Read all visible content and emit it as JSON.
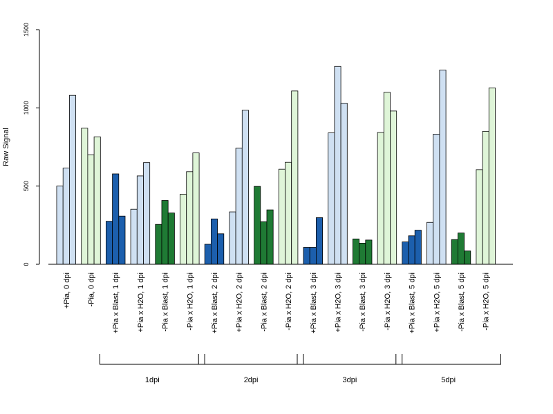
{
  "chart_data": {
    "type": "bar",
    "ylabel": "Raw Signal",
    "xlabel": "",
    "ylim": [
      0,
      1500
    ],
    "yticks": [
      0,
      500,
      1000,
      1500
    ],
    "grid": false,
    "categories": [
      "+Pia, 0 dpi",
      "-Pia, 0 dpi",
      "+Pia x Blast, 1 dpi",
      "+Pia x H2O, 1 dpi",
      "-Pia x Blast, 1 dpi",
      "-Pia x H2O, 1 dpi",
      "+Pia x Blast, 2 dpi",
      "+Pia x H2O, 2 dpi",
      "-Pia x Blast, 2 dpi",
      "-Pia x H2O, 2 dpi",
      "+Pia x Blast, 3 dpi",
      "+Pia x H2O, 3 dpi",
      "-Pia x Blast, 3 dpi",
      "-Pia x H2O, 3 dpi",
      "+Pia x Blast, 5 dpi",
      "+Pia x H2O, 5 dpi",
      "-Pia x Blast, 5 dpi",
      "-Pia x H2O, 5 dpi"
    ],
    "values": [
      [
        500,
        615,
        1080
      ],
      [
        870,
        700,
        815
      ],
      [
        275,
        578,
        308
      ],
      [
        352,
        565,
        650
      ],
      [
        255,
        408,
        328
      ],
      [
        448,
        592,
        712
      ],
      [
        128,
        290,
        195
      ],
      [
        335,
        742,
        985
      ],
      [
        498,
        272,
        348
      ],
      [
        608,
        652,
        1108
      ],
      [
        108,
        108,
        298
      ],
      [
        840,
        1265,
        1030
      ],
      [
        162,
        135,
        155
      ],
      [
        843,
        1100,
        980
      ],
      [
        143,
        182,
        218
      ],
      [
        268,
        832,
        1242
      ],
      [
        158,
        200,
        85
      ],
      [
        605,
        850,
        1128
      ]
    ],
    "colors": [
      "#cfe0f2",
      "#dff5d8",
      "#1c5fad",
      "#cfe0f2",
      "#1f7a34",
      "#dff5d8",
      "#1c5fad",
      "#cfe0f2",
      "#1f7a34",
      "#dff5d8",
      "#1c5fad",
      "#cfe0f2",
      "#1f7a34",
      "#dff5d8",
      "#1c5fad",
      "#cfe0f2",
      "#1f7a34",
      "#dff5d8"
    ],
    "groups": [
      {
        "label": "1dpi",
        "from": 2,
        "to": 5
      },
      {
        "label": "2dpi",
        "from": 6,
        "to": 9
      },
      {
        "label": "3dpi",
        "from": 10,
        "to": 13
      },
      {
        "label": "5dpi",
        "from": 14,
        "to": 17
      }
    ]
  }
}
